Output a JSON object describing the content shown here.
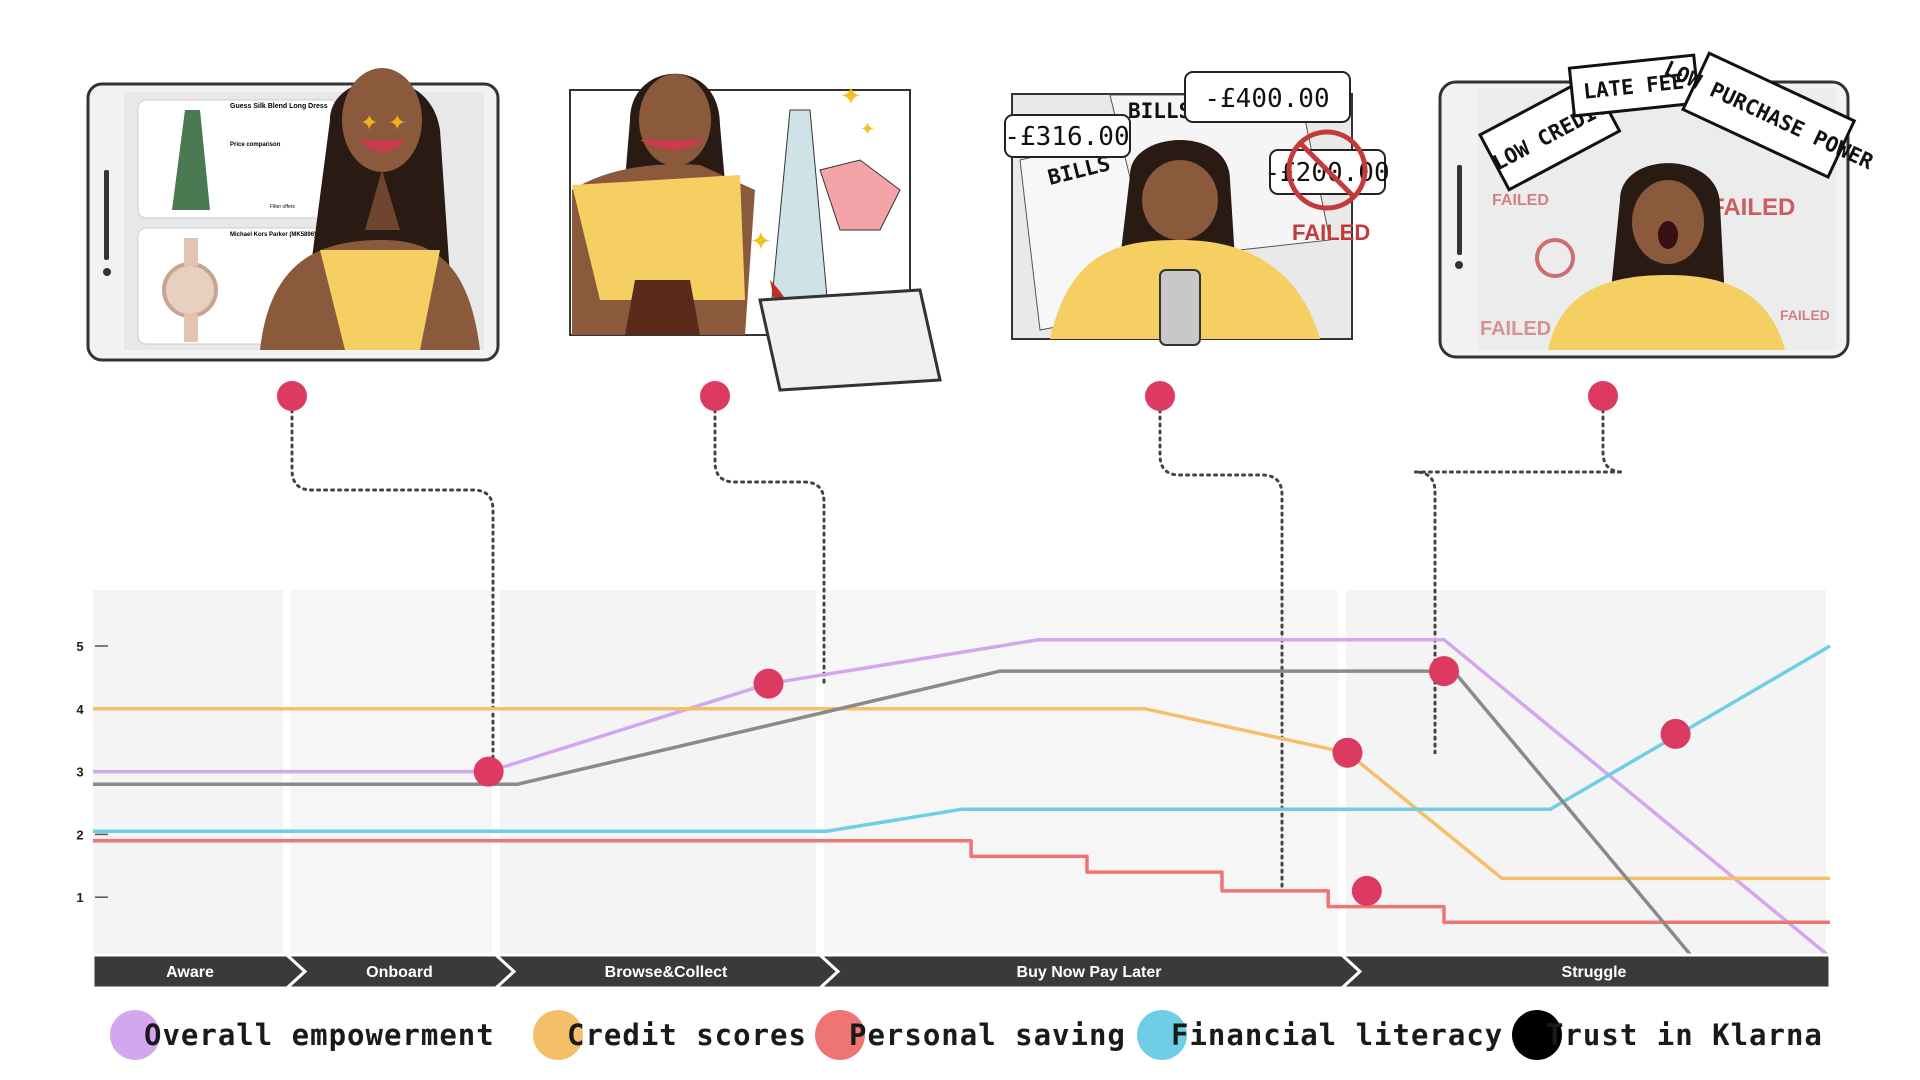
{
  "chart_data": {
    "type": "line",
    "stages": [
      {
        "label": "Aware",
        "start": 0,
        "end": 1
      },
      {
        "label": "Onboard",
        "start": 1,
        "end": 2
      },
      {
        "label": "Browse&Collect",
        "start": 2,
        "end": 3.5
      },
      {
        "label": "Buy Now Pay Later",
        "start": 3.5,
        "end": 6.5
      },
      {
        "label": "Struggle",
        "start": 6.5,
        "end": 9
      }
    ],
    "yticks": [
      5,
      4,
      3,
      2,
      1
    ],
    "ylim": [
      0,
      6
    ],
    "xlim": [
      0,
      9
    ],
    "series": [
      {
        "name": "Overall empowerment",
        "color": "#d4a6f0",
        "points": [
          [
            0,
            3.0
          ],
          [
            2.05,
            3.0
          ],
          [
            3.5,
            4.4
          ],
          [
            4.9,
            5.1
          ],
          [
            7.0,
            5.1
          ],
          [
            9.0,
            0.05
          ]
        ]
      },
      {
        "name": "Credit scores",
        "color": "#f5bf6a",
        "points": [
          [
            0,
            4.0
          ],
          [
            5.45,
            4.0
          ],
          [
            6.5,
            3.3
          ],
          [
            7.3,
            1.3
          ],
          [
            9.0,
            1.3
          ]
        ]
      },
      {
        "name": "Personal saving",
        "color": "#ef7575",
        "points": [
          [
            0,
            1.9
          ],
          [
            4.55,
            1.9
          ],
          [
            4.55,
            1.65
          ],
          [
            5.15,
            1.65
          ],
          [
            5.15,
            1.4
          ],
          [
            5.85,
            1.4
          ],
          [
            5.85,
            1.1
          ],
          [
            6.4,
            1.1
          ],
          [
            6.4,
            0.85
          ],
          [
            7.0,
            0.85
          ],
          [
            7.0,
            0.6
          ],
          [
            9.0,
            0.6
          ]
        ]
      },
      {
        "name": "Financial literacy",
        "color": "#6fcde6",
        "points": [
          [
            0,
            2.05
          ],
          [
            3.8,
            2.05
          ],
          [
            4.5,
            2.4
          ],
          [
            7.55,
            2.4
          ],
          [
            9.0,
            5.0
          ]
        ]
      },
      {
        "name": "Trust in Klarna",
        "color": "#8a8a8a",
        "points": [
          [
            0,
            2.8
          ],
          [
            2.2,
            2.8
          ],
          [
            4.7,
            4.6
          ],
          [
            7.05,
            4.6
          ],
          [
            8.3,
            0.0
          ]
        ]
      }
    ],
    "markers": [
      {
        "x": 2.05,
        "y": 3.0,
        "connect_to": 0
      },
      {
        "x": 3.5,
        "y": 4.4,
        "connect_to": 1
      },
      {
        "x": 6.6,
        "y": 1.1,
        "connect_to": 2
      },
      {
        "x": 6.5,
        "y": 3.3,
        "connect_to": 3
      },
      {
        "x": 7.0,
        "y": 4.6,
        "connect_to": null
      },
      {
        "x": 8.2,
        "y": 3.6,
        "connect_to": null
      }
    ],
    "marker_color": "#dd3a62"
  },
  "legend": [
    {
      "label": "Overall empowerment",
      "color": "#d4a6f0"
    },
    {
      "label": "Credit scores",
      "color": "#f5bf6a"
    },
    {
      "label": "Personal saving",
      "color": "#ef7575"
    },
    {
      "label": "Financial literacy",
      "color": "#6fcde6"
    },
    {
      "label": "Trust in Klarna",
      "color": "#000000"
    }
  ],
  "illustrations": {
    "browse": {
      "product1": "Guess Silk Blend Long Dress",
      "product2": "Michael Kors Parker (MK5896)",
      "price_comparison": "Price comparison",
      "filter_offers": "Filter offers"
    },
    "bills": {
      "bubble1": "-£316.00",
      "bubble2": "-£400.00",
      "bubble3": "-£200.00",
      "paper_label": "BILLS",
      "failed": "FAILED"
    },
    "struggle": {
      "sign_low_credit": "LOW CREDIT",
      "sign_late_fee": "LATE FEE",
      "sign_low_power": "LOW PURCHASE POWER",
      "failed": "FAILED"
    }
  }
}
